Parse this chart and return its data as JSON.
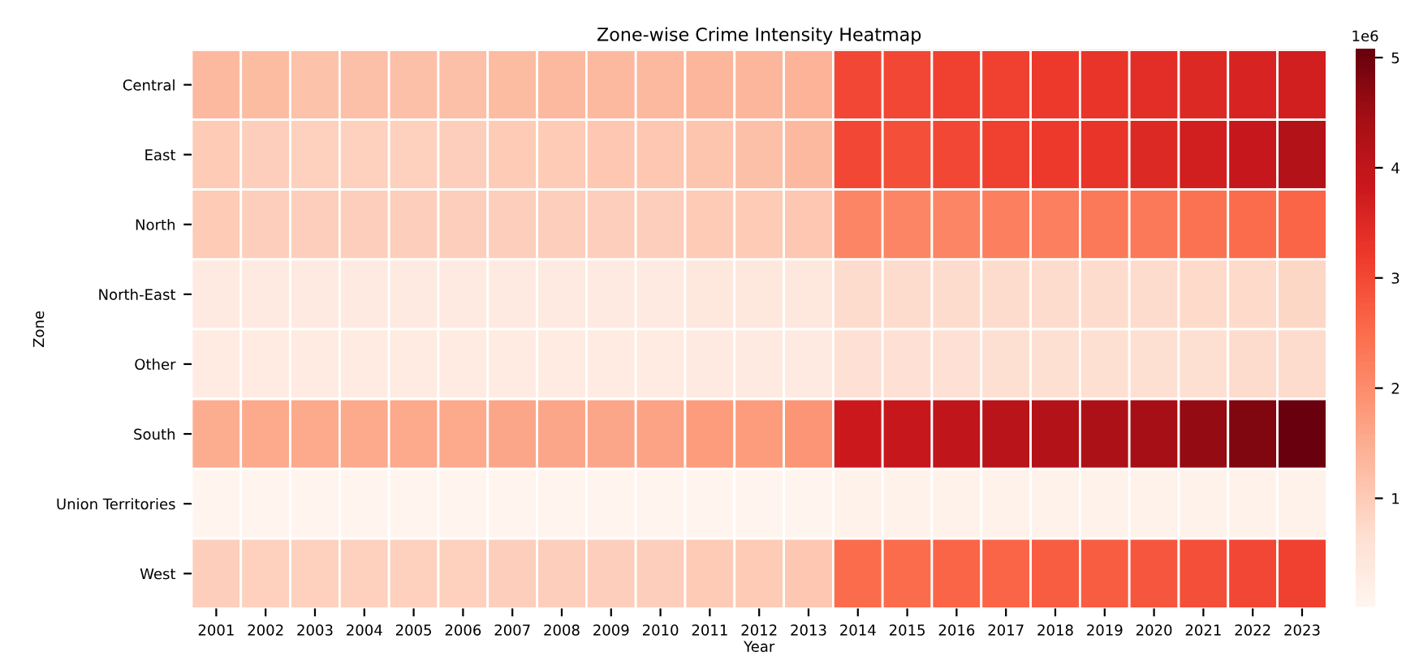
{
  "chart_data": {
    "type": "heatmap",
    "title": "Zone-wise Crime Intensity Heatmap",
    "xlabel": "Year",
    "ylabel": "Zone",
    "categories": [
      "2001",
      "2002",
      "2003",
      "2004",
      "2005",
      "2006",
      "2007",
      "2008",
      "2009",
      "2010",
      "2011",
      "2012",
      "2013",
      "2014",
      "2015",
      "2016",
      "2017",
      "2018",
      "2019",
      "2020",
      "2021",
      "2022",
      "2023"
    ],
    "y_categories": [
      "Central",
      "East",
      "North",
      "North-East",
      "Other",
      "South",
      "Union Territories",
      "West"
    ],
    "cells": [
      [
        1.3,
        1.25,
        1.15,
        1.2,
        1.2,
        1.2,
        1.25,
        1.3,
        1.3,
        1.3,
        1.35,
        1.35,
        1.4,
        3.0,
        3.0,
        3.1,
        3.1,
        3.2,
        3.3,
        3.4,
        3.5,
        3.6,
        3.7
      ],
      [
        1.0,
        0.95,
        0.9,
        0.9,
        0.9,
        0.95,
        1.0,
        1.0,
        1.05,
        1.05,
        1.1,
        1.2,
        1.3,
        3.0,
        2.9,
        3.0,
        3.1,
        3.2,
        3.3,
        3.5,
        3.7,
        3.9,
        4.2
      ],
      [
        1.0,
        0.95,
        0.95,
        0.95,
        0.95,
        0.95,
        0.95,
        0.95,
        0.95,
        0.95,
        1.0,
        1.0,
        1.05,
        2.1,
        2.1,
        2.1,
        2.2,
        2.2,
        2.3,
        2.3,
        2.4,
        2.5,
        2.6
      ],
      [
        0.35,
        0.35,
        0.35,
        0.35,
        0.35,
        0.35,
        0.35,
        0.35,
        0.35,
        0.35,
        0.4,
        0.4,
        0.4,
        0.7,
        0.7,
        0.7,
        0.7,
        0.7,
        0.7,
        0.7,
        0.75,
        0.75,
        0.8
      ],
      [
        0.3,
        0.3,
        0.3,
        0.3,
        0.3,
        0.3,
        0.3,
        0.3,
        0.3,
        0.3,
        0.35,
        0.35,
        0.35,
        0.6,
        0.6,
        0.6,
        0.65,
        0.65,
        0.65,
        0.65,
        0.65,
        0.7,
        0.7
      ],
      [
        1.5,
        1.55,
        1.55,
        1.55,
        1.55,
        1.55,
        1.6,
        1.6,
        1.6,
        1.65,
        1.75,
        1.75,
        1.85,
        3.8,
        3.9,
        4.0,
        4.1,
        4.2,
        4.3,
        4.4,
        4.6,
        4.8,
        5.05
      ],
      [
        0.05,
        0.05,
        0.05,
        0.05,
        0.05,
        0.05,
        0.05,
        0.05,
        0.05,
        0.05,
        0.05,
        0.05,
        0.05,
        0.1,
        0.1,
        0.1,
        0.1,
        0.1,
        0.1,
        0.1,
        0.1,
        0.1,
        0.1
      ],
      [
        0.95,
        0.9,
        0.9,
        0.9,
        0.9,
        0.9,
        0.95,
        0.95,
        0.95,
        0.95,
        1.0,
        1.0,
        1.05,
        2.5,
        2.5,
        2.6,
        2.6,
        2.7,
        2.7,
        2.8,
        2.9,
        3.0,
        3.1
      ]
    ],
    "clim": [
      0,
      5.07
    ],
    "cticks": [
      1,
      2,
      3,
      4,
      5
    ],
    "annotations": [
      "1e6"
    ]
  }
}
